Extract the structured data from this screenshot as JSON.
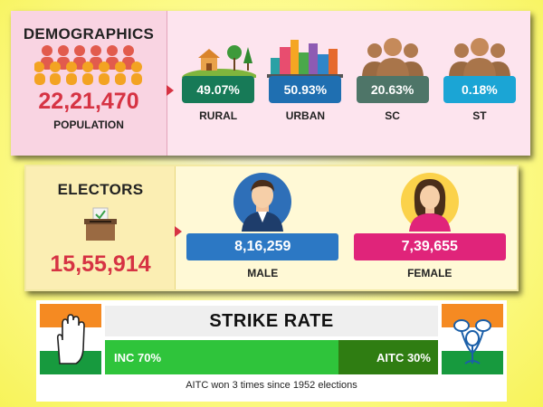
{
  "demographics": {
    "title": "DEMOGRAPHICS",
    "population_value": "22,21,470",
    "population_label": "POPULATION",
    "stats": [
      {
        "value": "49.07%",
        "label": "RURAL",
        "color": "#177a57",
        "icon": "rural-landscape-icon"
      },
      {
        "value": "50.93%",
        "label": "URBAN",
        "color": "#1f6fb1",
        "icon": "city-skyline-icon"
      },
      {
        "value": "20.63%",
        "label": "SC",
        "color": "#4e7568",
        "icon": "people-group-icon"
      },
      {
        "value": "0.18%",
        "label": "ST",
        "color": "#1ba5d5",
        "icon": "people-group-icon"
      }
    ]
  },
  "electors": {
    "title": "ELECTORS",
    "total_value": "15,55,914",
    "male": {
      "value": "8,16,259",
      "label": "MALE",
      "color": "#2c78c4"
    },
    "female": {
      "value": "7,39,655",
      "label": "FEMALE",
      "color": "#e0247a"
    }
  },
  "strike_rate": {
    "title": "STRIKE RATE",
    "inc_label": "INC 70%",
    "inc_percent": 70,
    "aitc_label": "AITC 30%",
    "aitc_percent": 30,
    "note": "AITC won 3 times since 1952 elections"
  },
  "colors": {
    "accent_red": "#d63343"
  }
}
